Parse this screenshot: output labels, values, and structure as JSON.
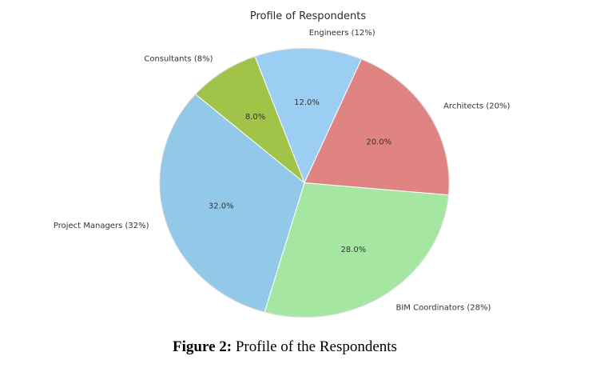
{
  "chart_data": {
    "type": "pie",
    "title": "Profile of Respondents",
    "categories": [
      "Engineers",
      "Architects",
      "BIM Coordinators",
      "Project Managers",
      "Consultants"
    ],
    "labels": [
      "Engineers (12%)",
      "Architects (20%)",
      "BIM Coordinators (28%)",
      "Project Managers (32%)",
      "Consultants (8%)"
    ],
    "values": [
      12,
      20,
      28,
      32,
      8
    ],
    "percent_labels": [
      "12.0%",
      "20.0%",
      "28.0%",
      "32.0%",
      "8.0%"
    ],
    "colors": [
      "#9CCEF4",
      "#DF8383",
      "#A5E7A2",
      "#92C9E9",
      "#A0C348"
    ],
    "start_angle_deg": 110,
    "direction": "clockwise",
    "label_distance": 1.12,
    "pct_distance": 0.6,
    "legend_position": "none",
    "text_color": "#333333",
    "edge_color": "#ffffff"
  },
  "caption": {
    "prefix": "Figure 2:",
    "text": " Profile of the Respondents"
  }
}
